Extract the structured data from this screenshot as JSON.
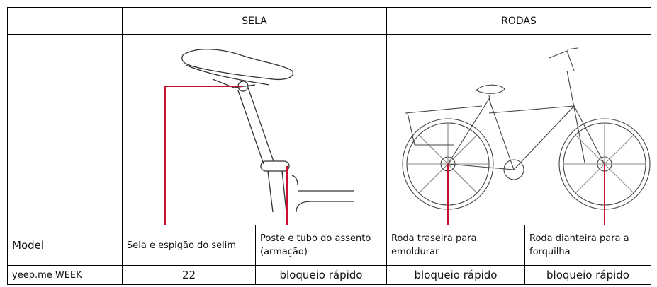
{
  "table": {
    "groups": [
      "SELA",
      "RODAS"
    ],
    "rows": [
      [
        "Model",
        "Sela e espigão do selim",
        "Poste e tubo do assento (armação)",
        "Roda traseira para emoldurar",
        "Roda dianteira para a forquilha"
      ],
      [
        "yeep.me WEEK",
        "22",
        "bloqueio rápido",
        "bloqueio rápido",
        "bloqueio rápido"
      ]
    ]
  }
}
